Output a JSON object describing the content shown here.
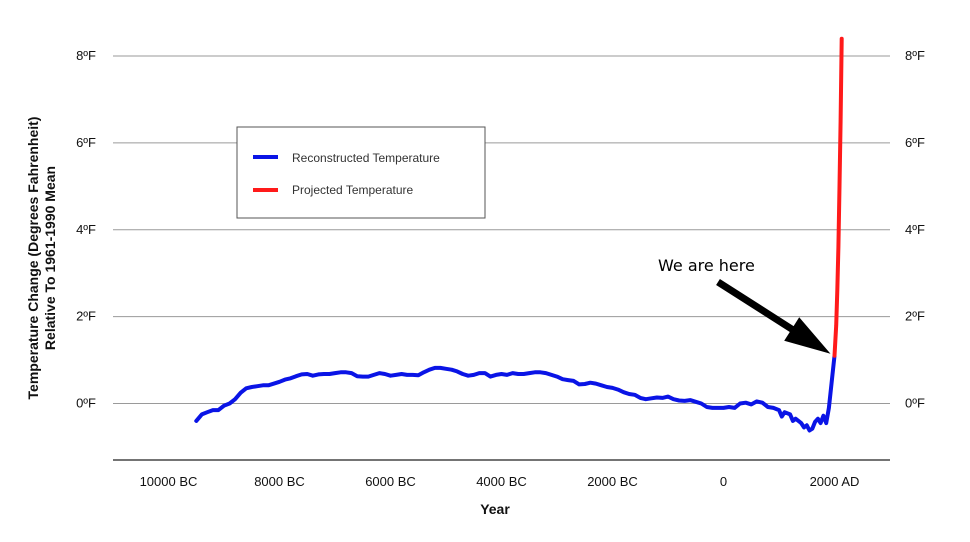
{
  "chart_data": {
    "type": "line",
    "title": "",
    "xlabel": "Year",
    "ylabel_line1": "Temperature Change (Degrees Fahrenheit)",
    "ylabel_line2": "Relative To 1961-1990 Mean",
    "x_unit": "year (negative = BC)",
    "xlim": [
      -11000,
      3000
    ],
    "ylim": [
      -1.3,
      8.6
    ],
    "x_ticks": [
      {
        "value": -10000,
        "label": "10000 BC"
      },
      {
        "value": -8000,
        "label": "8000 BC"
      },
      {
        "value": -6000,
        "label": "6000 BC"
      },
      {
        "value": -4000,
        "label": "4000 BC"
      },
      {
        "value": -2000,
        "label": "2000 BC"
      },
      {
        "value": 0,
        "label": "0"
      },
      {
        "value": 2000,
        "label": "2000 AD"
      }
    ],
    "y_ticks": [
      {
        "value": 0,
        "label": "0ºF"
      },
      {
        "value": 2,
        "label": "2ºF"
      },
      {
        "value": 4,
        "label": "4ºF"
      },
      {
        "value": 6,
        "label": "6ºF"
      },
      {
        "value": 8,
        "label": "8ºF"
      }
    ],
    "grid": "horizontal",
    "legend_position": "upper-left",
    "series": [
      {
        "name": "Reconstructed Temperature",
        "color": "#0a14e6",
        "points": [
          [
            -9500,
            -0.4
          ],
          [
            -9400,
            -0.25
          ],
          [
            -9300,
            -0.2
          ],
          [
            -9200,
            -0.15
          ],
          [
            -9100,
            -0.15
          ],
          [
            -9000,
            -0.05
          ],
          [
            -8900,
            0.0
          ],
          [
            -8800,
            0.1
          ],
          [
            -8700,
            0.25
          ],
          [
            -8600,
            0.35
          ],
          [
            -8500,
            0.38
          ],
          [
            -8400,
            0.4
          ],
          [
            -8300,
            0.42
          ],
          [
            -8200,
            0.42
          ],
          [
            -8100,
            0.46
          ],
          [
            -8000,
            0.5
          ],
          [
            -7900,
            0.55
          ],
          [
            -7800,
            0.58
          ],
          [
            -7700,
            0.63
          ],
          [
            -7600,
            0.67
          ],
          [
            -7500,
            0.68
          ],
          [
            -7400,
            0.64
          ],
          [
            -7300,
            0.67
          ],
          [
            -7200,
            0.68
          ],
          [
            -7100,
            0.68
          ],
          [
            -7000,
            0.7
          ],
          [
            -6900,
            0.72
          ],
          [
            -6800,
            0.72
          ],
          [
            -6700,
            0.7
          ],
          [
            -6600,
            0.63
          ],
          [
            -6500,
            0.62
          ],
          [
            -6400,
            0.62
          ],
          [
            -6300,
            0.66
          ],
          [
            -6200,
            0.7
          ],
          [
            -6100,
            0.68
          ],
          [
            -6000,
            0.64
          ],
          [
            -5900,
            0.66
          ],
          [
            -5800,
            0.68
          ],
          [
            -5700,
            0.66
          ],
          [
            -5600,
            0.66
          ],
          [
            -5500,
            0.65
          ],
          [
            -5400,
            0.72
          ],
          [
            -5300,
            0.78
          ],
          [
            -5200,
            0.82
          ],
          [
            -5100,
            0.82
          ],
          [
            -5000,
            0.8
          ],
          [
            -4900,
            0.78
          ],
          [
            -4800,
            0.74
          ],
          [
            -4700,
            0.68
          ],
          [
            -4600,
            0.64
          ],
          [
            -4500,
            0.66
          ],
          [
            -4400,
            0.7
          ],
          [
            -4300,
            0.7
          ],
          [
            -4200,
            0.62
          ],
          [
            -4100,
            0.66
          ],
          [
            -4000,
            0.68
          ],
          [
            -3900,
            0.66
          ],
          [
            -3800,
            0.7
          ],
          [
            -3700,
            0.68
          ],
          [
            -3600,
            0.68
          ],
          [
            -3500,
            0.7
          ],
          [
            -3400,
            0.72
          ],
          [
            -3300,
            0.72
          ],
          [
            -3200,
            0.7
          ],
          [
            -3100,
            0.66
          ],
          [
            -3000,
            0.62
          ],
          [
            -2900,
            0.56
          ],
          [
            -2800,
            0.54
          ],
          [
            -2700,
            0.52
          ],
          [
            -2600,
            0.44
          ],
          [
            -2500,
            0.45
          ],
          [
            -2400,
            0.48
          ],
          [
            -2300,
            0.46
          ],
          [
            -2200,
            0.42
          ],
          [
            -2100,
            0.38
          ],
          [
            -2000,
            0.36
          ],
          [
            -1900,
            0.32
          ],
          [
            -1800,
            0.26
          ],
          [
            -1700,
            0.22
          ],
          [
            -1600,
            0.2
          ],
          [
            -1500,
            0.13
          ],
          [
            -1400,
            0.1
          ],
          [
            -1300,
            0.12
          ],
          [
            -1200,
            0.14
          ],
          [
            -1100,
            0.13
          ],
          [
            -1000,
            0.16
          ],
          [
            -900,
            0.1
          ],
          [
            -800,
            0.07
          ],
          [
            -700,
            0.06
          ],
          [
            -600,
            0.08
          ],
          [
            -500,
            0.04
          ],
          [
            -400,
            0.0
          ],
          [
            -300,
            -0.08
          ],
          [
            -200,
            -0.1
          ],
          [
            -100,
            -0.1
          ],
          [
            0,
            -0.1
          ],
          [
            100,
            -0.08
          ],
          [
            200,
            -0.1
          ],
          [
            300,
            0.0
          ],
          [
            400,
            0.02
          ],
          [
            500,
            -0.02
          ],
          [
            600,
            0.05
          ],
          [
            700,
            0.02
          ],
          [
            800,
            -0.08
          ],
          [
            900,
            -0.1
          ],
          [
            1000,
            -0.15
          ],
          [
            1050,
            -0.3
          ],
          [
            1100,
            -0.2
          ],
          [
            1200,
            -0.25
          ],
          [
            1250,
            -0.4
          ],
          [
            1300,
            -0.35
          ],
          [
            1400,
            -0.45
          ],
          [
            1450,
            -0.55
          ],
          [
            1500,
            -0.5
          ],
          [
            1550,
            -0.62
          ],
          [
            1600,
            -0.58
          ],
          [
            1650,
            -0.42
          ],
          [
            1700,
            -0.35
          ],
          [
            1750,
            -0.45
          ],
          [
            1800,
            -0.28
          ],
          [
            1850,
            -0.45
          ],
          [
            1900,
            -0.1
          ],
          [
            1950,
            0.5
          ],
          [
            2000,
            1.1
          ]
        ]
      },
      {
        "name": "Projected Temperature",
        "color": "#ff1a1a",
        "points": [
          [
            2000,
            1.1
          ],
          [
            2030,
            1.8
          ],
          [
            2050,
            2.6
          ],
          [
            2070,
            3.6
          ],
          [
            2090,
            5.0
          ],
          [
            2110,
            6.5
          ],
          [
            2130,
            8.4
          ]
        ]
      }
    ],
    "annotation": {
      "text": "We are here",
      "target": [
        2000,
        1.1
      ]
    }
  }
}
